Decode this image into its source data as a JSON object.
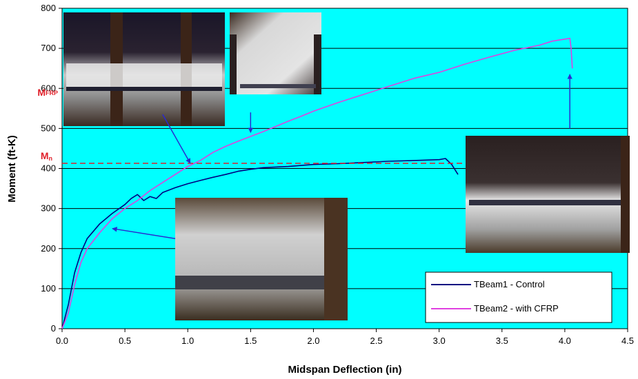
{
  "chart_data": {
    "type": "line",
    "xlabel": "Midspan Deflection (in)",
    "ylabel": "Moment (ft-K)",
    "xlim": [
      0,
      4.5
    ],
    "ylim": [
      0,
      800
    ],
    "x_ticks": [
      "0.0",
      "0.5",
      "1.0",
      "1.5",
      "2.0",
      "2.5",
      "3.0",
      "3.5",
      "4.0",
      "4.5"
    ],
    "y_ticks": [
      "0",
      "100",
      "200",
      "300",
      "400",
      "500",
      "600",
      "700",
      "800"
    ],
    "grid": "horizontal",
    "plot_background": "#00ffff",
    "legend_position": "bottom-right",
    "series": [
      {
        "name": "TBeam1 - Control",
        "color": "#000080",
        "points": [
          [
            0,
            0
          ],
          [
            0.05,
            60
          ],
          [
            0.1,
            140
          ],
          [
            0.15,
            190
          ],
          [
            0.2,
            225
          ],
          [
            0.3,
            262
          ],
          [
            0.4,
            288
          ],
          [
            0.5,
            310
          ],
          [
            0.55,
            325
          ],
          [
            0.6,
            335
          ],
          [
            0.65,
            320
          ],
          [
            0.7,
            330
          ],
          [
            0.75,
            325
          ],
          [
            0.8,
            340
          ],
          [
            0.9,
            352
          ],
          [
            1.0,
            362
          ],
          [
            1.1,
            370
          ],
          [
            1.2,
            378
          ],
          [
            1.3,
            385
          ],
          [
            1.4,
            393
          ],
          [
            1.5,
            398
          ],
          [
            1.6,
            402
          ],
          [
            1.8,
            405
          ],
          [
            2.0,
            410
          ],
          [
            2.2,
            412
          ],
          [
            2.4,
            415
          ],
          [
            2.6,
            418
          ],
          [
            2.8,
            420
          ],
          [
            3.0,
            422
          ],
          [
            3.05,
            425
          ],
          [
            3.1,
            410
          ],
          [
            3.15,
            385
          ]
        ]
      },
      {
        "name": "TBeam2 - with CFRP",
        "color": "#e040e0",
        "points": [
          [
            0,
            0
          ],
          [
            0.05,
            40
          ],
          [
            0.1,
            110
          ],
          [
            0.15,
            165
          ],
          [
            0.2,
            200
          ],
          [
            0.3,
            240
          ],
          [
            0.4,
            275
          ],
          [
            0.5,
            300
          ],
          [
            0.6,
            320
          ],
          [
            0.7,
            345
          ],
          [
            0.8,
            365
          ],
          [
            0.9,
            385
          ],
          [
            1.0,
            405
          ],
          [
            1.1,
            420
          ],
          [
            1.2,
            440
          ],
          [
            1.3,
            455
          ],
          [
            1.4,
            468
          ],
          [
            1.5,
            480
          ],
          [
            1.6,
            492
          ],
          [
            1.7,
            505
          ],
          [
            1.8,
            518
          ],
          [
            1.9,
            530
          ],
          [
            2.0,
            543
          ],
          [
            2.2,
            565
          ],
          [
            2.4,
            585
          ],
          [
            2.6,
            605
          ],
          [
            2.8,
            625
          ],
          [
            3.0,
            640
          ],
          [
            3.1,
            650
          ],
          [
            3.2,
            660
          ],
          [
            3.4,
            678
          ],
          [
            3.6,
            695
          ],
          [
            3.8,
            708
          ],
          [
            3.9,
            718
          ],
          [
            4.0,
            723
          ],
          [
            4.04,
            725
          ],
          [
            4.05,
            700
          ],
          [
            4.06,
            650
          ]
        ]
      }
    ],
    "reference_lines": [
      {
        "label": "M",
        "subscript": "n",
        "y": 413,
        "color": "#e0202a",
        "style": "dashed"
      }
    ],
    "annotations": [
      {
        "label": "M",
        "subscript": "FRP",
        "y": 583,
        "color": "#e0202a"
      }
    ],
    "callouts": [
      {
        "from": [
          0.8,
          535
        ],
        "to": [
          1.02,
          413
        ]
      },
      {
        "from": [
          1.5,
          540
        ],
        "to": [
          1.5,
          490
        ]
      },
      {
        "from": [
          0.9,
          225
        ],
        "to": [
          0.4,
          250
        ]
      },
      {
        "from": [
          4.04,
          500
        ],
        "to": [
          4.04,
          635
        ]
      }
    ]
  }
}
